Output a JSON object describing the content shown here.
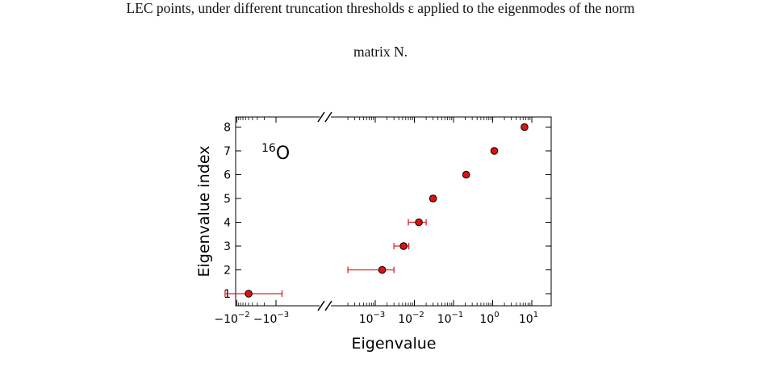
{
  "caption": {
    "line1": "LEC points, under different truncation thresholds ε applied to the eigenmodes of the norm",
    "line2": "matrix N."
  },
  "chart_data": {
    "type": "scatter",
    "title": "",
    "annotation_nucleus_mass": "16",
    "annotation_nucleus_symbol": "O",
    "xlabel": "Eigenvalue",
    "ylabel": "Eigenvalue index",
    "x_scale": "symlog (broken axis)",
    "negative_xticks": [
      "−10−2",
      "−10−3"
    ],
    "positive_xticks": [
      "10−3",
      "10−2",
      "10−1",
      "100",
      "101"
    ],
    "yticks": [
      1,
      2,
      3,
      4,
      5,
      6,
      7,
      8
    ],
    "ylim": [
      0.6,
      8.4
    ],
    "colors": {
      "marker": "#dd1111",
      "errorbar": "#dd2222",
      "marker_edge": "#000000"
    },
    "points": [
      {
        "index": 1,
        "x": -0.005,
        "xlow": -0.02,
        "xhigh": -0.0007
      },
      {
        "index": 2,
        "x": 0.0015,
        "xlow": 0.0002,
        "xhigh": 0.003
      },
      {
        "index": 3,
        "x": 0.0053,
        "xlow": 0.003,
        "xhigh": 0.0072
      },
      {
        "index": 4,
        "x": 0.013,
        "xlow": 0.007,
        "xhigh": 0.02
      },
      {
        "index": 5,
        "x": 0.03,
        "xlow": 0.0265,
        "xhigh": 0.034
      },
      {
        "index": 6,
        "x": 0.21,
        "xlow": 0.19,
        "xhigh": 0.23
      },
      {
        "index": 7,
        "x": 1.1,
        "xlow": 1.04,
        "xhigh": 1.17
      },
      {
        "index": 8,
        "x": 6.5,
        "xlow": 6.2,
        "xhigh": 6.8
      }
    ]
  }
}
